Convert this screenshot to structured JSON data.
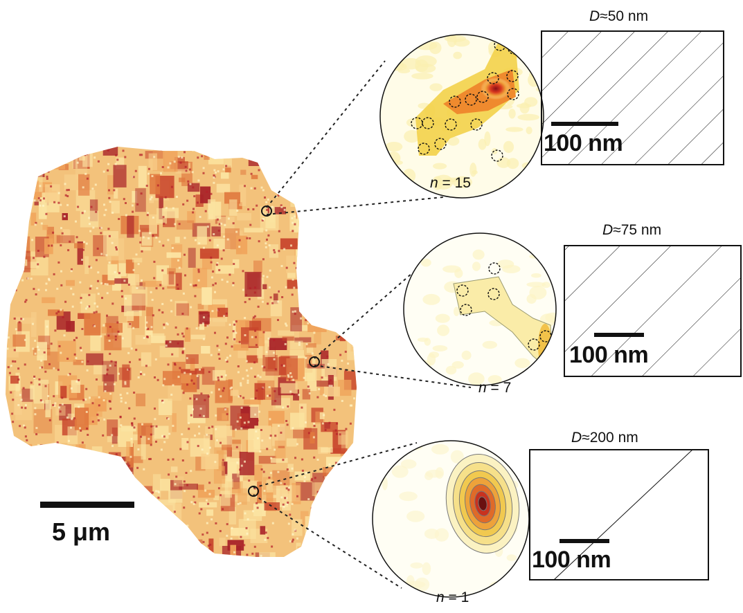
{
  "figure": {
    "main_scalebar_label": "5 μm",
    "insets": [
      {
        "d_symbol": "D",
        "d_value": "≈50 nm",
        "n_symbol": "n",
        "n_value": " = 15",
        "scalebar_label": "100 nm"
      },
      {
        "d_symbol": "D",
        "d_value": "≈75 nm",
        "n_symbol": "n",
        "n_value": " = 7",
        "scalebar_label": "100 nm"
      },
      {
        "d_symbol": "D",
        "d_value": "≈200 nm",
        "n_symbol": "n",
        "n_value": " = 1",
        "scalebar_label": "100 nm"
      }
    ],
    "colors": {
      "low": "#fff7c9",
      "mid": "#f1a35c",
      "high": "#b5202a",
      "outline": "#111111"
    }
  }
}
